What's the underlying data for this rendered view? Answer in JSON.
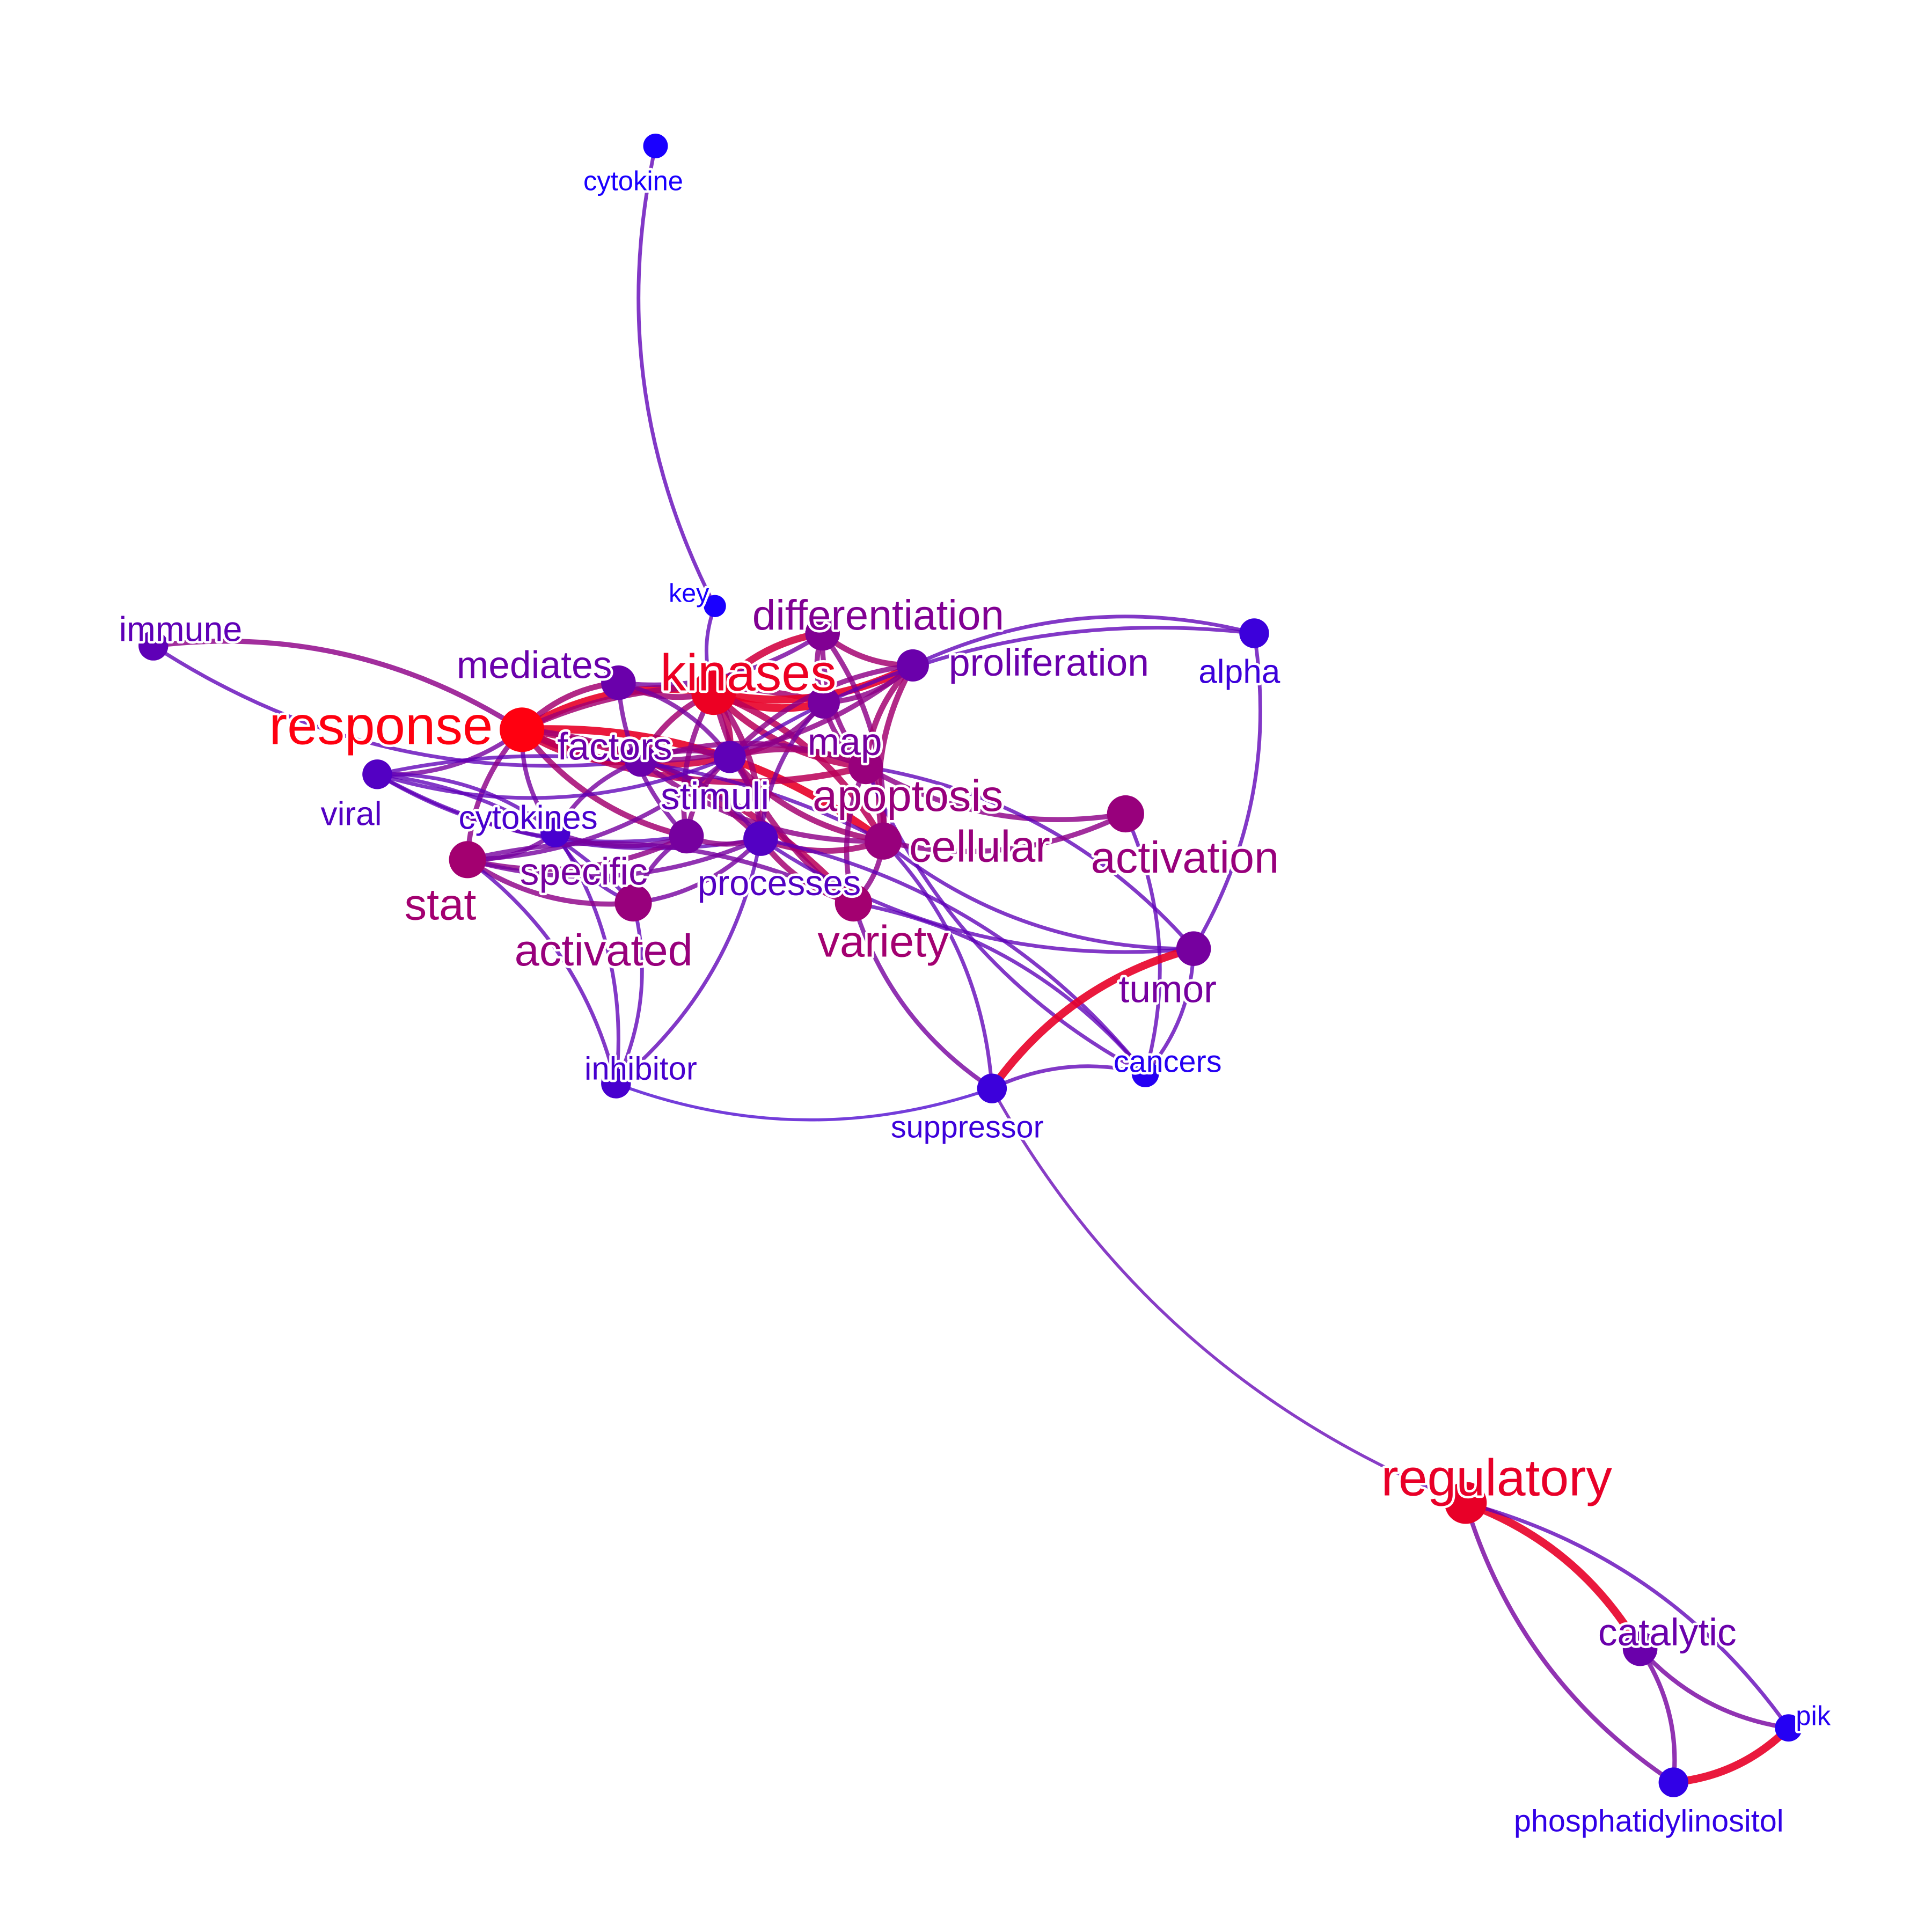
{
  "diagram": {
    "type": "word co-occurrence network",
    "color_scale": {
      "low": "#1a00ff",
      "high": "#ff0010"
    },
    "nodes": [
      {
        "id": "cytokine",
        "label": "cytokine",
        "weight": 0.0
      },
      {
        "id": "key",
        "label": "key",
        "weight": 0.0
      },
      {
        "id": "differentiation",
        "label": "differentiation",
        "weight": 0.45
      },
      {
        "id": "immune",
        "label": "immune",
        "weight": 0.3
      },
      {
        "id": "mediates",
        "label": "mediates",
        "weight": 0.35
      },
      {
        "id": "kinases",
        "label": "kinases",
        "weight": 0.92
      },
      {
        "id": "proliferation",
        "label": "proliferation",
        "weight": 0.35
      },
      {
        "id": "alpha",
        "label": "alpha",
        "weight": 0.15
      },
      {
        "id": "response",
        "label": "response",
        "weight": 1.0
      },
      {
        "id": "factors",
        "label": "factors",
        "weight": 0.35
      },
      {
        "id": "map",
        "label": "map",
        "weight": 0.4
      },
      {
        "id": "viral",
        "label": "viral",
        "weight": 0.25
      },
      {
        "id": "stimuli",
        "label": "stimuli",
        "weight": 0.3
      },
      {
        "id": "apoptosis",
        "label": "apoptosis",
        "weight": 0.55
      },
      {
        "id": "cytokines",
        "label": "cytokines",
        "weight": 0.2
      },
      {
        "id": "cellular",
        "label": "cellular",
        "weight": 0.55
      },
      {
        "id": "activation",
        "label": "activation",
        "weight": 0.55
      },
      {
        "id": "specific",
        "label": "specific",
        "weight": 0.4
      },
      {
        "id": "processes",
        "label": "processes",
        "weight": 0.25
      },
      {
        "id": "stat",
        "label": "stat",
        "weight": 0.6
      },
      {
        "id": "activated",
        "label": "activated",
        "weight": 0.55
      },
      {
        "id": "variety",
        "label": "variety",
        "weight": 0.6
      },
      {
        "id": "tumor",
        "label": "tumor",
        "weight": 0.4
      },
      {
        "id": "inhibitor",
        "label": "inhibitor",
        "weight": 0.2
      },
      {
        "id": "cancers",
        "label": "cancers",
        "weight": 0.05
      },
      {
        "id": "suppressor",
        "label": "suppressor",
        "weight": 0.15
      },
      {
        "id": "regulatory",
        "label": "regulatory",
        "weight": 0.9
      },
      {
        "id": "catalytic",
        "label": "catalytic",
        "weight": 0.35
      },
      {
        "id": "pik",
        "label": "pik",
        "weight": 0.05
      },
      {
        "id": "phosphatidylinositol",
        "label": "phosphatidylinositol",
        "weight": 0.1
      }
    ],
    "edges": [
      {
        "source": "cytokine",
        "target": "key",
        "weight": 0.3
      },
      {
        "source": "immune",
        "target": "response",
        "weight": 0.5
      },
      {
        "source": "immune",
        "target": "factors",
        "weight": 0.3
      },
      {
        "source": "response",
        "target": "kinases",
        "weight": 0.9
      },
      {
        "source": "response",
        "target": "factors",
        "weight": 0.8
      },
      {
        "source": "response",
        "target": "viral",
        "weight": 0.4
      },
      {
        "source": "response",
        "target": "stat",
        "weight": 0.5
      },
      {
        "source": "response",
        "target": "mediates",
        "weight": 0.6
      },
      {
        "source": "response",
        "target": "stimuli",
        "weight": 0.8
      },
      {
        "source": "response",
        "target": "cellular",
        "weight": 0.9
      },
      {
        "source": "response",
        "target": "apoptosis",
        "weight": 0.7
      },
      {
        "source": "response",
        "target": "variety",
        "weight": 0.7
      },
      {
        "source": "response",
        "target": "specific",
        "weight": 0.6
      },
      {
        "source": "response",
        "target": "map",
        "weight": 0.6
      },
      {
        "source": "response",
        "target": "cytokines",
        "weight": 0.4
      },
      {
        "source": "response",
        "target": "processes",
        "weight": 0.6
      },
      {
        "source": "kinases",
        "target": "proliferation",
        "weight": 0.9
      },
      {
        "source": "kinases",
        "target": "differentiation",
        "weight": 0.8
      },
      {
        "source": "kinases",
        "target": "map",
        "weight": 0.9
      },
      {
        "source": "kinases",
        "target": "mediates",
        "weight": 0.6
      },
      {
        "source": "kinases",
        "target": "factors",
        "weight": 0.6
      },
      {
        "source": "kinases",
        "target": "stimuli",
        "weight": 0.7
      },
      {
        "source": "kinases",
        "target": "apoptosis",
        "weight": 0.7
      },
      {
        "source": "kinases",
        "target": "cellular",
        "weight": 0.7
      },
      {
        "source": "kinases",
        "target": "specific",
        "weight": 0.5
      },
      {
        "source": "kinases",
        "target": "processes",
        "weight": 0.6
      },
      {
        "source": "kinases",
        "target": "variety",
        "weight": 0.6
      },
      {
        "source": "kinases",
        "target": "key",
        "weight": 0.3
      },
      {
        "source": "differentiation",
        "target": "proliferation",
        "weight": 0.6
      },
      {
        "source": "differentiation",
        "target": "mediates",
        "weight": 0.4
      },
      {
        "source": "differentiation",
        "target": "apoptosis",
        "weight": 0.5
      },
      {
        "source": "differentiation",
        "target": "cellular",
        "weight": 0.5
      },
      {
        "source": "differentiation",
        "target": "map",
        "weight": 0.5
      },
      {
        "source": "proliferation",
        "target": "alpha",
        "weight": 0.3
      },
      {
        "source": "proliferation",
        "target": "apoptosis",
        "weight": 0.6
      },
      {
        "source": "proliferation",
        "target": "map",
        "weight": 0.5
      },
      {
        "source": "proliferation",
        "target": "cellular",
        "weight": 0.6
      },
      {
        "source": "proliferation",
        "target": "factors",
        "weight": 0.5
      },
      {
        "source": "proliferation",
        "target": "stimuli",
        "weight": 0.5
      },
      {
        "source": "alpha",
        "target": "tumor",
        "weight": 0.3
      },
      {
        "source": "alpha",
        "target": "stimuli",
        "weight": 0.3
      },
      {
        "source": "mediates",
        "target": "stimuli",
        "weight": 0.4
      },
      {
        "source": "mediates",
        "target": "specific",
        "weight": 0.4
      },
      {
        "source": "factors",
        "target": "stimuli",
        "weight": 0.5
      },
      {
        "source": "factors",
        "target": "cytokines",
        "weight": 0.4
      },
      {
        "source": "factors",
        "target": "apoptosis",
        "weight": 0.5
      },
      {
        "source": "factors",
        "target": "cellular",
        "weight": 0.5
      },
      {
        "source": "factors",
        "target": "processes",
        "weight": 0.4
      },
      {
        "source": "map",
        "target": "apoptosis",
        "weight": 0.5
      },
      {
        "source": "map",
        "target": "stimuli",
        "weight": 0.5
      },
      {
        "source": "map",
        "target": "processes",
        "weight": 0.4
      },
      {
        "source": "viral",
        "target": "cytokines",
        "weight": 0.3
      },
      {
        "source": "viral",
        "target": "stimuli",
        "weight": 0.3
      },
      {
        "source": "viral",
        "target": "cellular",
        "weight": 0.3
      },
      {
        "source": "viral",
        "target": "processes",
        "weight": 0.3
      },
      {
        "source": "viral",
        "target": "activated",
        "weight": 0.3
      },
      {
        "source": "viral",
        "target": "specific",
        "weight": 0.3
      },
      {
        "source": "stimuli",
        "target": "apoptosis",
        "weight": 0.6
      },
      {
        "source": "stimuli",
        "target": "cellular",
        "weight": 0.6
      },
      {
        "source": "stimuli",
        "target": "processes",
        "weight": 0.5
      },
      {
        "source": "stimuli",
        "target": "specific",
        "weight": 0.5
      },
      {
        "source": "stimuli",
        "target": "stat",
        "weight": 0.4
      },
      {
        "source": "apoptosis",
        "target": "activation",
        "weight": 0.5
      },
      {
        "source": "apoptosis",
        "target": "cellular",
        "weight": 0.6
      },
      {
        "source": "apoptosis",
        "target": "variety",
        "weight": 0.5
      },
      {
        "source": "apoptosis",
        "target": "tumor",
        "weight": 0.3
      },
      {
        "source": "apoptosis",
        "target": "cancers",
        "weight": 0.3
      },
      {
        "source": "cytokines",
        "target": "stat",
        "weight": 0.4
      },
      {
        "source": "cytokines",
        "target": "specific",
        "weight": 0.4
      },
      {
        "source": "cytokines",
        "target": "inhibitor",
        "weight": 0.3
      },
      {
        "source": "cytokines",
        "target": "activated",
        "weight": 0.3
      },
      {
        "source": "cellular",
        "target": "processes",
        "weight": 0.6
      },
      {
        "source": "cellular",
        "target": "activation",
        "weight": 0.5
      },
      {
        "source": "cellular",
        "target": "variety",
        "weight": 0.5
      },
      {
        "source": "cellular",
        "target": "tumor",
        "weight": 0.3
      },
      {
        "source": "cellular",
        "target": "suppressor",
        "weight": 0.3
      },
      {
        "source": "specific",
        "target": "processes",
        "weight": 0.5
      },
      {
        "source": "specific",
        "target": "stat",
        "weight": 0.5
      },
      {
        "source": "specific",
        "target": "activated",
        "weight": 0.4
      },
      {
        "source": "processes",
        "target": "activated",
        "weight": 0.4
      },
      {
        "source": "processes",
        "target": "variety",
        "weight": 0.6
      },
      {
        "source": "processes",
        "target": "inhibitor",
        "weight": 0.3
      },
      {
        "source": "processes",
        "target": "tumor",
        "weight": 0.3
      },
      {
        "source": "processes",
        "target": "cancers",
        "weight": 0.3
      },
      {
        "source": "stat",
        "target": "activated",
        "weight": 0.5
      },
      {
        "source": "stat",
        "target": "inhibitor",
        "weight": 0.3
      },
      {
        "source": "stat",
        "target": "processes",
        "weight": 0.4
      },
      {
        "source": "activated",
        "target": "inhibitor",
        "weight": 0.3
      },
      {
        "source": "variety",
        "target": "suppressor",
        "weight": 0.4
      },
      {
        "source": "variety",
        "target": "cancers",
        "weight": 0.3
      },
      {
        "source": "variety",
        "target": "stat",
        "weight": 0.4
      },
      {
        "source": "activation",
        "target": "cancers",
        "weight": 0.3
      },
      {
        "source": "tumor",
        "target": "suppressor",
        "weight": 0.9
      },
      {
        "source": "tumor",
        "target": "cancers",
        "weight": 0.3
      },
      {
        "source": "inhibitor",
        "target": "suppressor",
        "weight": 0.2
      },
      {
        "source": "suppressor",
        "target": "cancers",
        "weight": 0.3
      },
      {
        "source": "suppressor",
        "target": "regulatory",
        "weight": 0.2
      },
      {
        "source": "regulatory",
        "target": "catalytic",
        "weight": 0.9
      },
      {
        "source": "regulatory",
        "target": "phosphatidylinositol",
        "weight": 0.4
      },
      {
        "source": "regulatory",
        "target": "pik",
        "weight": 0.3
      },
      {
        "source": "catalytic",
        "target": "pik",
        "weight": 0.4
      },
      {
        "source": "catalytic",
        "target": "phosphatidylinositol",
        "weight": 0.4
      },
      {
        "source": "phosphatidylinositol",
        "target": "pik",
        "weight": 0.9
      }
    ]
  }
}
